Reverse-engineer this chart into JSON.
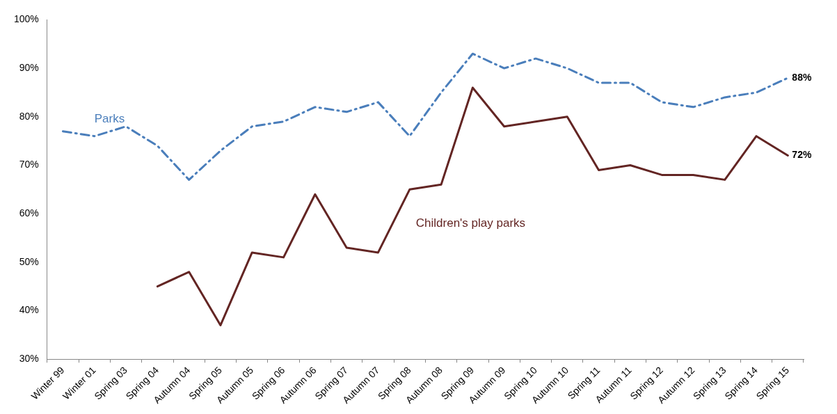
{
  "chart_data": {
    "type": "line",
    "categories": [
      "Winter 99",
      "Winter 01",
      "Spring 03",
      "Spring 04",
      "Autumn 04",
      "Spring 05",
      "Autumn 05",
      "Spring 06",
      "Autumn 06",
      "Spring 07",
      "Autumn 07",
      "Spring 08",
      "Autumn 08",
      "Spring 09",
      "Autumn 09",
      "Spring 10",
      "Autumn 10",
      "Spring 11",
      "Autumn 11",
      "Spring 12",
      "Autumn 12",
      "Spring 13",
      "Spring 14",
      "Spring 15"
    ],
    "series": [
      {
        "name": "Parks",
        "color": "#4a7ebb",
        "line_style": "dashed",
        "values": [
          77,
          76,
          78,
          74,
          67,
          73,
          78,
          79,
          82,
          81,
          83,
          76,
          85,
          93,
          90,
          92,
          90,
          87,
          87,
          83,
          82,
          84,
          85,
          88
        ],
        "value_labels": [
          null,
          null,
          null,
          null,
          null,
          null,
          null,
          null,
          null,
          null,
          null,
          null,
          null,
          null,
          null,
          null,
          null,
          null,
          null,
          null,
          null,
          null,
          null,
          "88%"
        ]
      },
      {
        "name": "Children's play parks",
        "color": "#632523",
        "line_style": "solid",
        "values": [
          null,
          null,
          null,
          45,
          48,
          37,
          52,
          51,
          64,
          53,
          52,
          65,
          66,
          86,
          78,
          79,
          80,
          69,
          70,
          68,
          68,
          67,
          76,
          72
        ],
        "value_labels": [
          null,
          null,
          null,
          null,
          null,
          null,
          null,
          null,
          null,
          null,
          null,
          null,
          null,
          null,
          null,
          null,
          null,
          null,
          null,
          null,
          null,
          null,
          null,
          "72%"
        ]
      }
    ],
    "ylim": [
      30,
      100
    ],
    "yticks": [
      {
        "value": 30,
        "label": "30%"
      },
      {
        "value": 40,
        "label": "40%"
      },
      {
        "value": 50,
        "label": "50%"
      },
      {
        "value": 60,
        "label": "60%"
      },
      {
        "value": 70,
        "label": "70%"
      },
      {
        "value": 80,
        "label": "80%"
      },
      {
        "value": 90,
        "label": "90%"
      },
      {
        "value": 100,
        "label": "100%"
      }
    ],
    "grid": false,
    "legend": false,
    "marker": "none"
  }
}
